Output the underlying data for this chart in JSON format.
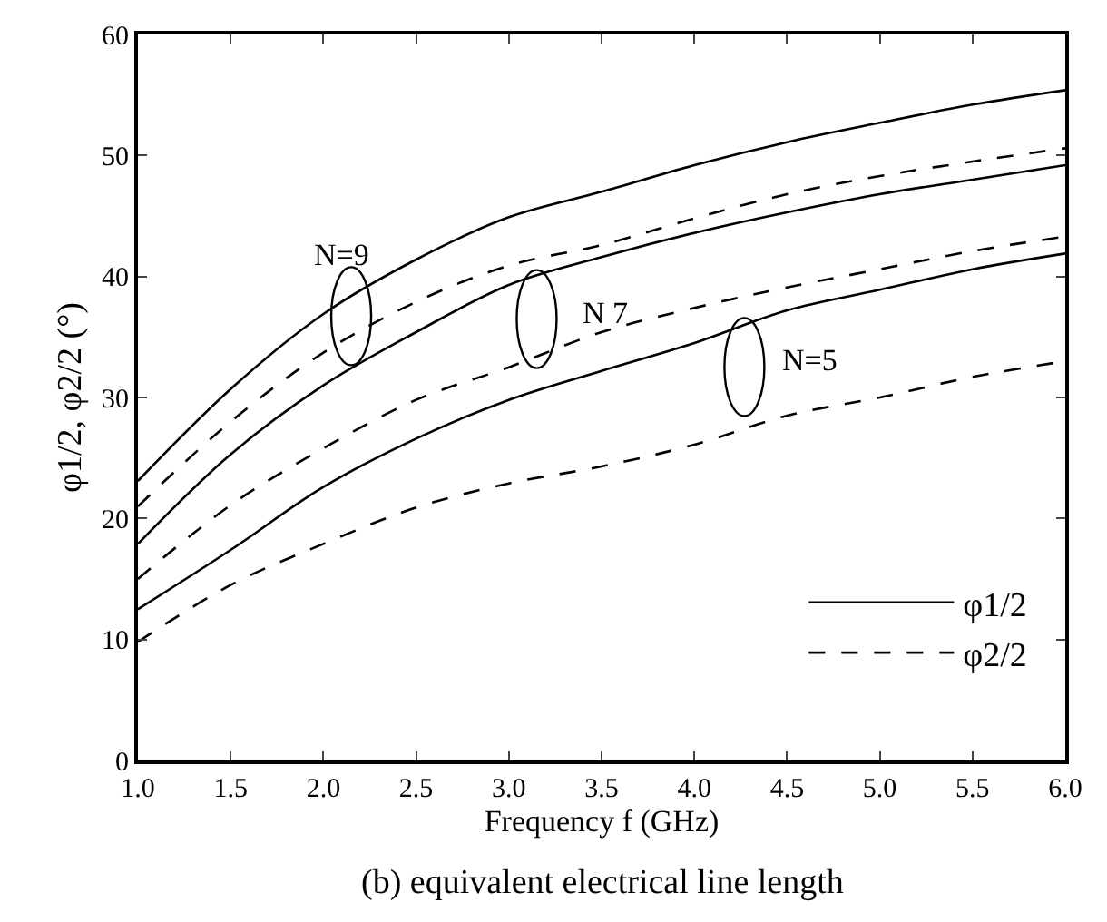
{
  "chart_data": {
    "type": "line",
    "xlabel": "Frequency f (GHz)",
    "ylabel": "φ1/2, φ2/2 (°)",
    "x": [
      1.0,
      1.5,
      2.0,
      2.5,
      3.0,
      3.5,
      4.0,
      4.5,
      5.0,
      5.5,
      6.0
    ],
    "series": [
      {
        "name": "φ1/2",
        "color": "#000000",
        "line_style": "solid",
        "values": [
          23.1,
          30.7,
          36.9,
          41.4,
          44.9,
          47.0,
          49.2,
          51.1,
          52.7,
          54.2,
          55.4
        ]
      },
      {
        "name": "φ2/2",
        "color": "#000000",
        "line_style": "dashed",
        "values": [
          21.0,
          28.0,
          33.7,
          37.9,
          40.9,
          42.6,
          44.8,
          46.8,
          48.3,
          49.5,
          50.6
        ]
      },
      {
        "color": "#000000",
        "line_style": "solid",
        "values": [
          17.9,
          25.3,
          31.0,
          35.4,
          39.3,
          41.6,
          43.6,
          45.3,
          46.8,
          48.0,
          49.2
        ]
      },
      {
        "color": "#000000",
        "line_style": "dashed",
        "values": [
          15.0,
          21.1,
          25.8,
          29.8,
          32.5,
          35.4,
          37.4,
          39.1,
          40.6,
          42.1,
          43.3
        ]
      },
      {
        "color": "#000000",
        "line_style": "solid",
        "values": [
          12.5,
          17.4,
          22.6,
          26.6,
          29.8,
          32.2,
          34.5,
          37.2,
          38.9,
          40.6,
          41.9
        ]
      },
      {
        "color": "#000000",
        "line_style": "dashed",
        "values": [
          9.8,
          14.5,
          17.9,
          20.9,
          22.9,
          24.3,
          26.1,
          28.5,
          30.0,
          31.7,
          33.0
        ]
      }
    ],
    "xlim": [
      1.0,
      6.0
    ],
    "xticks": [
      {
        "value": 1.0,
        "label": "1.0"
      },
      1.5,
      {
        "value": 2.0,
        "label": "2.0"
      },
      2.5,
      {
        "value": 3.0,
        "label": "3.0"
      },
      3.5,
      {
        "value": 4.0,
        "label": "4.0"
      },
      4.5,
      {
        "value": 5.0,
        "label": "5.0"
      },
      5.5,
      {
        "value": 6.0,
        "label": "6.0"
      }
    ],
    "ylim": [
      0,
      60
    ],
    "yticks": [
      0,
      10,
      20,
      30,
      40,
      50,
      60
    ],
    "legend": "bottom right",
    "annotations": [
      "N=9",
      "N 7",
      "N=5",
      "(b) equivalent electrical line length"
    ]
  }
}
